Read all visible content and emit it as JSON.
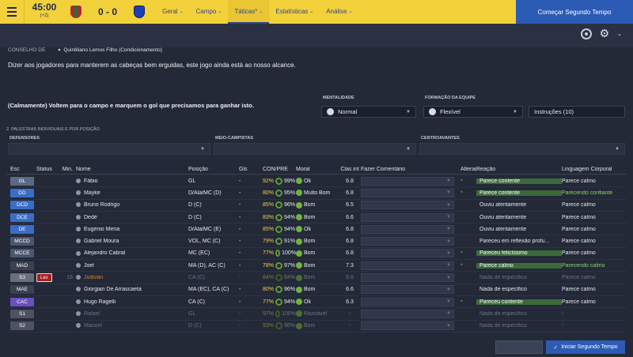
{
  "topbar": {
    "time": "45:00",
    "added_time": "(+2)",
    "score": "0 - 0",
    "tabs": [
      {
        "label": "Geral",
        "active": false
      },
      {
        "label": "Campo",
        "active": false
      },
      {
        "label": "Táticas*",
        "active": true
      },
      {
        "label": "Estatísticas",
        "active": false
      },
      {
        "label": "Análise",
        "active": false
      }
    ],
    "start_second_half": "Começar Segundo Tempo"
  },
  "advisor": {
    "label": "CONSELHO DE",
    "name": "Quintiliano Lemos Filho (Condicionamento)",
    "advice": "Dizer aos jogadores para manterem as cabeças bem erguidas, este jogo ainda está ao nosso alcance."
  },
  "team_talk": "(Calmamente) Voltem para o campo e marquem o gol que precisamos para ganhar isto.",
  "tactics": {
    "mentality_label": "MENTALIDADE",
    "mentality_value": "Normal",
    "formation_label": "FORMAÇÃO DA EQUIPE",
    "formation_value": "Flexível",
    "instructions": "Instruções (10)"
  },
  "individual": {
    "section_label": "2. PALESTRAS INDIVIDUAIS E POR POSIÇÃO",
    "groups": [
      {
        "label": "DEFENSORES"
      },
      {
        "label": "MEIO-CAMPISTAS"
      },
      {
        "label": "CENTROAVANTES"
      }
    ]
  },
  "table": {
    "headers": {
      "esc": "Esc",
      "status": "Status",
      "min": "Min.",
      "name": "Nome",
      "pos": "Posição",
      "gls": "Gls",
      "con": "CON/PRE",
      "moral": "Moral",
      "clas": "Clas int",
      "fazer": "Fazer Comentário",
      "alt": "Alteraç",
      "reac": "Reação",
      "ling": "Linguagem Corporal"
    },
    "rows": [
      {
        "esc": "GL",
        "color": "#5a6a84",
        "status": "",
        "min": "",
        "name": "Fábio",
        "pos": "GL",
        "gls": "-",
        "con": "92%",
        "pre": "99%",
        "moral": "Ok",
        "clas": "6.8",
        "alt": "^",
        "reac": "Parece contente",
        "reac_green": true,
        "ling": "Parece calmo",
        "ling_green": false,
        "dim": false
      },
      {
        "esc": "DD",
        "color": "#3a6dc8",
        "status": "",
        "min": "",
        "name": "Mayke",
        "pos": "D/Ala/MC (D)",
        "gls": "-",
        "con": "80%",
        "pre": "95%",
        "moral": "Muito Bom",
        "clas": "6.8",
        "alt": "^",
        "reac": "Parece contente",
        "reac_green": true,
        "ling": "Parecendo confiante",
        "ling_green": true,
        "dim": false
      },
      {
        "esc": "DCD",
        "color": "#3a6dc8",
        "status": "",
        "min": "",
        "name": "Bruno Rodrigo",
        "pos": "D (C)",
        "gls": "-",
        "con": "85%",
        "pre": "96%",
        "moral": "Bom",
        "clas": "6.5",
        "alt": "",
        "reac": "Ouviu atentamente",
        "reac_green": false,
        "ling": "Parece calmo",
        "ling_green": false,
        "dim": false
      },
      {
        "esc": "DCE",
        "color": "#3a6dc8",
        "status": "",
        "min": "",
        "name": "Dedé",
        "pos": "D (C)",
        "gls": "-",
        "con": "83%",
        "pre": "94%",
        "moral": "Bom",
        "clas": "6.6",
        "alt": "",
        "reac": "Ouviu atentamente",
        "reac_green": false,
        "ling": "Parece calmo",
        "ling_green": false,
        "dim": false
      },
      {
        "esc": "DE",
        "color": "#3a6dc8",
        "status": "",
        "min": "",
        "name": "Eugenio Mena",
        "pos": "D/Ala/MC (E)",
        "gls": "-",
        "con": "85%",
        "pre": "94%",
        "moral": "Ok",
        "clas": "6.8",
        "alt": "",
        "reac": "Ouviu atentamente",
        "reac_green": false,
        "ling": "Parece calmo",
        "ling_green": false,
        "dim": false
      },
      {
        "esc": "MCCD",
        "color": "#4b5670",
        "status": "",
        "min": "",
        "name": "Gabriel Moura",
        "pos": "VOL, MC (C)",
        "gls": "-",
        "con": "79%",
        "pre": "91%",
        "moral": "Bom",
        "clas": "6.8",
        "alt": "",
        "reac": "Pareceu em reflexão profu...",
        "reac_green": false,
        "ling": "Parece calmo",
        "ling_green": false,
        "dim": false
      },
      {
        "esc": "MCCE",
        "color": "#4b5670",
        "status": "",
        "min": "",
        "name": "Alejandro Cabral",
        "pos": "MC (EC)",
        "gls": "-",
        "con": "77%",
        "pre": "100%",
        "moral": "Bom",
        "clas": "6.8",
        "alt": "^",
        "reac": "Pareceu felicíssimo",
        "reac_green": true,
        "ling": "Parece calmo",
        "ling_green": false,
        "dim": false
      },
      {
        "esc": "MAD",
        "color": "#3b4152",
        "status": "",
        "min": "",
        "name": "Joel",
        "pos": "MA (D), AC (C)",
        "gls": "-",
        "con": "78%",
        "pre": "97%",
        "moral": "Bom",
        "clas": "7.3",
        "alt": "^",
        "reac": "Parece calmo",
        "reac_green": true,
        "ling": "Parecendo calmo",
        "ling_green": true,
        "dim": false
      },
      {
        "esc": "S3",
        "color": "#6a6f7e",
        "status": "Les",
        "min": "18",
        "name": "Judivan",
        "pos": "CA (C)",
        "gls": "-",
        "con": "84%",
        "pre": "94%",
        "moral": "Bom",
        "clas": "6.6",
        "alt": "",
        "reac": "Nada de específico",
        "reac_green": false,
        "ling": "Parece calmo",
        "ling_green": false,
        "dim": true,
        "injured": true
      },
      {
        "esc": "MAE",
        "color": "#3b4152",
        "status": "",
        "min": "",
        "name": "Giorgian De Arrascaeta",
        "pos": "MA (EC), CA (C)",
        "gls": "-",
        "con": "80%",
        "pre": "96%",
        "moral": "Bom",
        "clas": "6.6",
        "alt": "",
        "reac": "Nada de específico",
        "reac_green": false,
        "ling": "Parece calmo",
        "ling_green": false,
        "dim": false
      },
      {
        "esc": "CAC",
        "color": "#6a4fc0",
        "status": "",
        "min": "",
        "name": "Hugo Ragelli",
        "pos": "CA (C)",
        "gls": "-",
        "con": "77%",
        "pre": "94%",
        "moral": "Ok",
        "clas": "6.3",
        "alt": "^",
        "reac": "Pareceu contente",
        "reac_green": true,
        "ling": "Parece calmo",
        "ling_green": false,
        "dim": false
      },
      {
        "esc": "S1",
        "color": "#4e5263",
        "status": "",
        "min": "",
        "name": "Rafael",
        "pos": "GL",
        "gls": "-",
        "con": "97%",
        "pre": "100%",
        "moral": "Razoável",
        "clas": "-",
        "alt": "",
        "reac": "Nada de específico",
        "reac_green": false,
        "ling": "-",
        "ling_green": false,
        "dim": true
      },
      {
        "esc": "S2",
        "color": "#4e5263",
        "status": "",
        "min": "",
        "name": "Manoel",
        "pos": "D (C)",
        "gls": "-",
        "con": "93%",
        "pre": "96%",
        "moral": "Bom",
        "clas": "-",
        "alt": "",
        "reac": "Nada de específico",
        "reac_green": false,
        "ling": "-",
        "ling_green": false,
        "dim": true
      }
    ]
  },
  "bottom": {
    "start_button": "Iniciar Segundo Tempo"
  }
}
